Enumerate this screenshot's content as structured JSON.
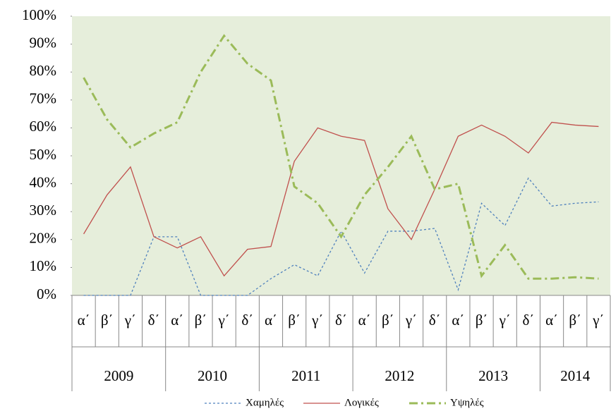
{
  "chart_data": {
    "type": "line",
    "category_groups": [
      {
        "label": "2009",
        "categories": [
          "α΄",
          "β΄",
          "γ΄",
          "δ΄"
        ]
      },
      {
        "label": "2010",
        "categories": [
          "α΄",
          "β΄",
          "γ΄",
          "δ΄"
        ]
      },
      {
        "label": "2011",
        "categories": [
          "α΄",
          "β΄",
          "γ΄",
          "δ΄"
        ]
      },
      {
        "label": "2012",
        "categories": [
          "α΄",
          "β΄",
          "γ΄",
          "δ΄"
        ]
      },
      {
        "label": "2013",
        "categories": [
          "α΄",
          "β΄",
          "γ΄",
          "δ΄"
        ]
      },
      {
        "label": "2014",
        "categories": [
          "α΄",
          "β΄",
          "γ΄"
        ]
      }
    ],
    "series": [
      {
        "name": "Χαμηλές",
        "color": "#4f81bd",
        "dash": "3,3",
        "values": [
          0,
          0,
          0,
          21,
          21,
          0,
          0,
          0,
          6,
          11,
          7,
          23,
          8,
          23,
          23,
          24,
          2,
          33,
          25,
          42,
          32,
          33,
          33.5
        ]
      },
      {
        "name": "Λογικές",
        "color": "#c0504d",
        "dash": "none",
        "values": [
          22,
          36,
          46,
          21,
          17,
          21,
          7,
          16.5,
          17.5,
          48,
          60,
          57,
          55.5,
          31,
          20,
          38,
          57,
          61,
          57,
          51,
          62,
          61,
          60.5
        ]
      },
      {
        "name": "Υψηλές",
        "color": "#9bbb59",
        "dash": "12,5,3,5",
        "values": [
          78,
          63,
          53,
          58,
          62,
          80,
          93,
          83,
          77,
          39,
          33,
          21,
          36,
          46,
          57,
          38,
          40,
          7,
          18,
          6,
          6,
          6.5,
          6
        ]
      }
    ],
    "ylim": [
      0,
      100
    ],
    "yticks": [
      {
        "value": 0,
        "label": "0%"
      },
      {
        "value": 10,
        "label": "10%"
      },
      {
        "value": 20,
        "label": "20%"
      },
      {
        "value": 30,
        "label": "30%"
      },
      {
        "value": 40,
        "label": "40%"
      },
      {
        "value": 50,
        "label": "50%"
      },
      {
        "value": 60,
        "label": "60%"
      },
      {
        "value": 70,
        "label": "70%"
      },
      {
        "value": 80,
        "label": "80%"
      },
      {
        "value": 90,
        "label": "90%"
      },
      {
        "value": 100,
        "label": "100%"
      }
    ],
    "plot_background": "#e6eedb",
    "legend": "bottom"
  }
}
